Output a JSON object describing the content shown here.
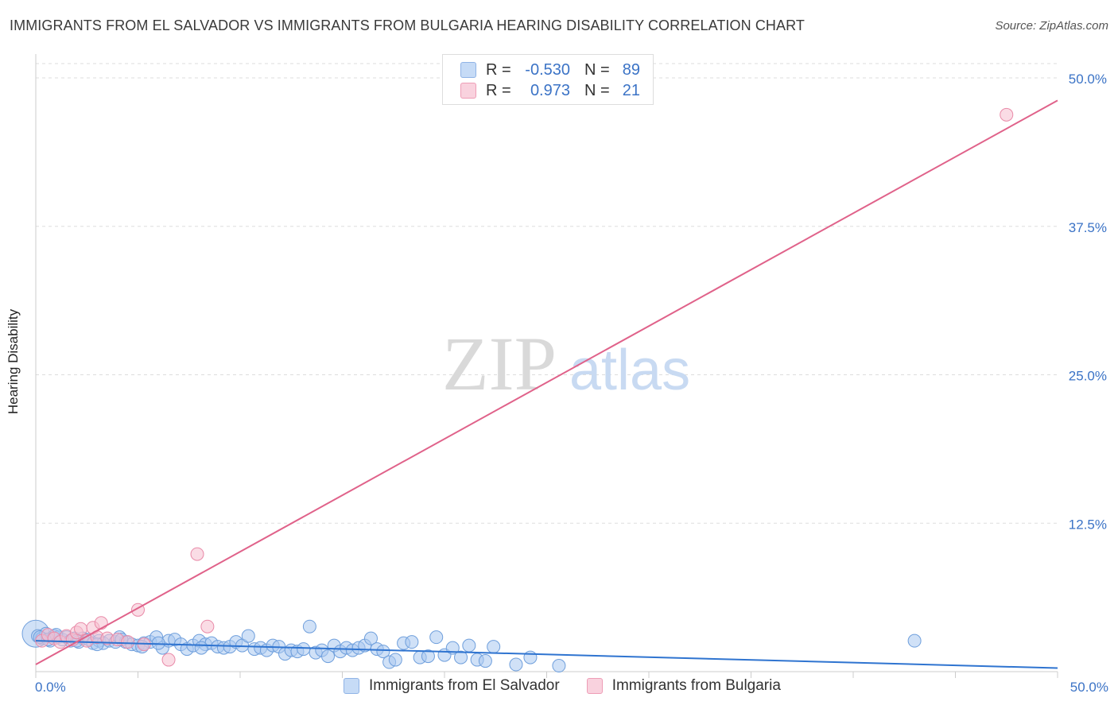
{
  "title": "IMMIGRANTS FROM EL SALVADOR VS IMMIGRANTS FROM BULGARIA HEARING DISABILITY CORRELATION CHART",
  "source": "Source: ZipAtlas.com",
  "watermark": {
    "zip": "ZIP",
    "atlas": "atlas"
  },
  "colors": {
    "blue_fill": "#a9c8f0",
    "blue_stroke": "#6f9fdc",
    "blue_line": "#2f74d0",
    "pink_fill": "#f6c0d0",
    "pink_stroke": "#e98aa8",
    "pink_line": "#e0628a",
    "grid": "#dddddd",
    "tick_label": "#3b73c6"
  },
  "legend": {
    "rows": [
      {
        "r_label": "R =",
        "r_value": "-0.530",
        "n_label": "N =",
        "n_value": "89"
      },
      {
        "r_label": "R =",
        "r_value": "0.973",
        "n_label": "N =",
        "n_value": "21"
      }
    ]
  },
  "chart_data": {
    "type": "scatter",
    "title": "IMMIGRANTS FROM EL SALVADOR VS IMMIGRANTS FROM BULGARIA HEARING DISABILITY CORRELATION CHART",
    "xlabel": "",
    "ylabel": "Hearing Disability",
    "xlim": [
      0,
      50
    ],
    "ylim": [
      0,
      50
    ],
    "x_tick_labels": [
      "0.0%",
      "50.0%"
    ],
    "y_ticks": [
      12.5,
      25.0,
      37.5,
      50.0
    ],
    "y_tick_labels": [
      "12.5%",
      "25.0%",
      "37.5%",
      "50.0%"
    ],
    "legend_position": "top-center",
    "series": [
      {
        "name": "Immigrants from El Salvador",
        "color": "#a9c8f0",
        "trend": {
          "x0": 0,
          "y0": 2.6,
          "x1": 50,
          "y1": 0.3
        },
        "points": [
          [
            0.1,
            3.0
          ],
          [
            0.3,
            2.8
          ],
          [
            0.5,
            3.2
          ],
          [
            0.7,
            2.6
          ],
          [
            0.9,
            3.0
          ],
          [
            1.1,
            2.9
          ],
          [
            1.3,
            2.7
          ],
          [
            1.5,
            2.9
          ],
          [
            1.7,
            2.6
          ],
          [
            1.9,
            2.8
          ],
          [
            2.1,
            2.5
          ],
          [
            2.3,
            2.8
          ],
          [
            2.6,
            2.7
          ],
          [
            2.8,
            2.4
          ],
          [
            3.1,
            2.6
          ],
          [
            3.3,
            2.4
          ],
          [
            3.6,
            2.6
          ],
          [
            3.9,
            2.5
          ],
          [
            4.1,
            2.9
          ],
          [
            4.4,
            2.5
          ],
          [
            4.7,
            2.3
          ],
          [
            5.0,
            2.2
          ],
          [
            5.3,
            2.4
          ],
          [
            5.6,
            2.5
          ],
          [
            5.9,
            2.9
          ],
          [
            6.2,
            2.0
          ],
          [
            6.5,
            2.6
          ],
          [
            6.8,
            2.7
          ],
          [
            7.1,
            2.3
          ],
          [
            7.4,
            1.9
          ],
          [
            7.7,
            2.2
          ],
          [
            8.0,
            2.6
          ],
          [
            8.3,
            2.3
          ],
          [
            8.6,
            2.4
          ],
          [
            8.9,
            2.1
          ],
          [
            9.2,
            2.0
          ],
          [
            9.5,
            2.1
          ],
          [
            9.8,
            2.5
          ],
          [
            10.1,
            2.2
          ],
          [
            10.4,
            3.0
          ],
          [
            10.7,
            1.9
          ],
          [
            11.0,
            2.0
          ],
          [
            11.3,
            1.8
          ],
          [
            11.6,
            2.2
          ],
          [
            11.9,
            2.1
          ],
          [
            12.2,
            1.5
          ],
          [
            12.5,
            1.8
          ],
          [
            12.8,
            1.7
          ],
          [
            13.1,
            1.9
          ],
          [
            13.4,
            3.8
          ],
          [
            13.7,
            1.6
          ],
          [
            14.0,
            1.8
          ],
          [
            14.3,
            1.3
          ],
          [
            14.6,
            2.2
          ],
          [
            14.9,
            1.7
          ],
          [
            15.2,
            2.0
          ],
          [
            15.5,
            1.8
          ],
          [
            15.8,
            2.0
          ],
          [
            16.1,
            2.2
          ],
          [
            16.4,
            2.8
          ],
          [
            16.7,
            1.9
          ],
          [
            17.0,
            1.7
          ],
          [
            17.3,
            0.8
          ],
          [
            17.6,
            1.0
          ],
          [
            18.0,
            2.4
          ],
          [
            18.4,
            2.5
          ],
          [
            18.8,
            1.2
          ],
          [
            19.2,
            1.3
          ],
          [
            19.6,
            2.9
          ],
          [
            20.0,
            1.4
          ],
          [
            20.4,
            2.0
          ],
          [
            20.8,
            1.2
          ],
          [
            21.2,
            2.2
          ],
          [
            21.6,
            1.0
          ],
          [
            22.0,
            0.9
          ],
          [
            22.4,
            2.1
          ],
          [
            23.5,
            0.6
          ],
          [
            24.2,
            1.2
          ],
          [
            25.6,
            0.5
          ],
          [
            43.0,
            2.6
          ],
          [
            0.2,
            2.9
          ],
          [
            0.6,
            2.7
          ],
          [
            1.0,
            3.1
          ],
          [
            2.0,
            2.6
          ],
          [
            3.0,
            2.3
          ],
          [
            4.2,
            2.7
          ],
          [
            5.2,
            2.1
          ],
          [
            6.0,
            2.4
          ],
          [
            8.1,
            2.0
          ]
        ],
        "big_point": [
          0.0,
          3.2
        ]
      },
      {
        "name": "Immigrants from Bulgaria",
        "color": "#f6c0d0",
        "trend": {
          "x0": 0,
          "y0": 0.6,
          "x1": 50,
          "y1": 48.1
        },
        "points": [
          [
            0.3,
            2.6
          ],
          [
            0.6,
            3.1
          ],
          [
            0.9,
            2.8
          ],
          [
            1.2,
            2.5
          ],
          [
            1.5,
            3.0
          ],
          [
            1.8,
            2.7
          ],
          [
            2.0,
            3.3
          ],
          [
            2.2,
            3.6
          ],
          [
            2.5,
            2.6
          ],
          [
            2.8,
            3.7
          ],
          [
            3.0,
            2.9
          ],
          [
            3.2,
            4.1
          ],
          [
            3.5,
            2.8
          ],
          [
            4.0,
            2.7
          ],
          [
            4.5,
            2.5
          ],
          [
            5.0,
            5.2
          ],
          [
            5.3,
            2.3
          ],
          [
            6.5,
            1.0
          ],
          [
            7.9,
            9.9
          ],
          [
            8.4,
            3.8
          ],
          [
            47.5,
            46.9
          ]
        ]
      }
    ]
  },
  "bottom_legend": [
    {
      "label": "Immigrants from El Salvador"
    },
    {
      "label": "Immigrants from Bulgaria"
    }
  ]
}
